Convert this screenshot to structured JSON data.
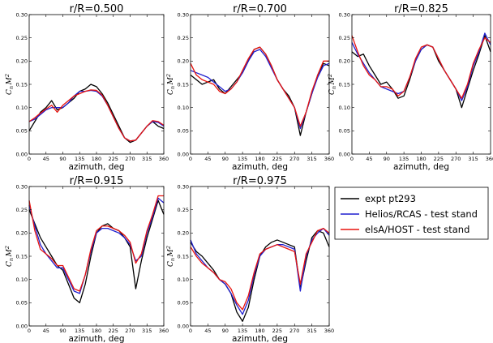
{
  "chart_data": {
    "type": "line",
    "ylabel": "C_n M^2",
    "ylabel_main": "C",
    "ylabel_sub": "n",
    "ylabel_m": "M",
    "ylabel_sup": "2",
    "xlabel": "azimuth, deg",
    "xlim": [
      0,
      360
    ],
    "ylim": [
      0,
      0.3
    ],
    "xticks": [
      "0",
      "45",
      "90",
      "135",
      "180",
      "225",
      "270",
      "315",
      "360"
    ],
    "yticks": [
      "0.00",
      "0.05",
      "0.10",
      "0.15",
      "0.20",
      "0.25",
      "0.30"
    ],
    "legend": [
      {
        "name": "expt pt293",
        "color": "#000000"
      },
      {
        "name": "Helios/RCAS - test stand",
        "color": "#1f1fcf"
      },
      {
        "name": "elsA/HOST - test stand",
        "color": "#e8140f"
      }
    ],
    "panels": [
      {
        "title": "r/R=0.500",
        "x": [
          0,
          15,
          30,
          45,
          60,
          75,
          90,
          105,
          120,
          135,
          150,
          165,
          180,
          195,
          210,
          225,
          240,
          255,
          270,
          285,
          300,
          315,
          330,
          345,
          360
        ],
        "series": [
          [
            0.05,
            0.07,
            0.09,
            0.1,
            0.115,
            0.095,
            0.1,
            0.11,
            0.12,
            0.135,
            0.14,
            0.15,
            0.145,
            0.13,
            0.11,
            0.085,
            0.06,
            0.035,
            0.025,
            0.03,
            0.045,
            0.06,
            0.07,
            0.06,
            0.055
          ],
          [
            0.07,
            0.075,
            0.085,
            0.095,
            0.1,
            0.1,
            0.1,
            0.11,
            0.125,
            0.135,
            0.135,
            0.137,
            0.135,
            0.125,
            0.105,
            0.08,
            0.055,
            0.035,
            0.028,
            0.03,
            0.045,
            0.06,
            0.07,
            0.068,
            0.06
          ],
          [
            0.07,
            0.078,
            0.088,
            0.097,
            0.105,
            0.09,
            0.105,
            0.115,
            0.125,
            0.13,
            0.135,
            0.138,
            0.137,
            0.127,
            0.105,
            0.08,
            0.055,
            0.035,
            0.028,
            0.03,
            0.045,
            0.06,
            0.072,
            0.07,
            0.062
          ]
        ]
      },
      {
        "title": "r/R=0.700",
        "x": [
          0,
          15,
          30,
          45,
          60,
          75,
          90,
          105,
          120,
          135,
          150,
          165,
          180,
          195,
          210,
          225,
          240,
          255,
          270,
          285,
          300,
          315,
          330,
          345,
          360
        ],
        "series": [
          [
            0.17,
            0.16,
            0.15,
            0.155,
            0.16,
            0.14,
            0.13,
            0.145,
            0.16,
            0.175,
            0.2,
            0.225,
            0.23,
            0.215,
            0.19,
            0.16,
            0.14,
            0.125,
            0.1,
            0.04,
            0.09,
            0.13,
            0.17,
            0.195,
            0.19
          ],
          [
            0.18,
            0.175,
            0.17,
            0.165,
            0.155,
            0.145,
            0.135,
            0.14,
            0.155,
            0.175,
            0.2,
            0.22,
            0.225,
            0.21,
            0.185,
            0.16,
            0.14,
            0.12,
            0.1,
            0.055,
            0.09,
            0.13,
            0.165,
            0.19,
            0.195
          ],
          [
            0.195,
            0.17,
            0.16,
            0.155,
            0.15,
            0.135,
            0.13,
            0.14,
            0.155,
            0.18,
            0.205,
            0.225,
            0.23,
            0.215,
            0.19,
            0.16,
            0.14,
            0.12,
            0.1,
            0.06,
            0.09,
            0.135,
            0.17,
            0.2,
            0.2
          ]
        ]
      },
      {
        "title": "r/R=0.825",
        "x": [
          0,
          15,
          30,
          45,
          60,
          75,
          90,
          105,
          120,
          135,
          150,
          165,
          180,
          195,
          210,
          225,
          240,
          255,
          270,
          285,
          300,
          315,
          330,
          345,
          360
        ],
        "series": [
          [
            0.22,
            0.21,
            0.215,
            0.19,
            0.17,
            0.15,
            0.155,
            0.14,
            0.12,
            0.125,
            0.16,
            0.2,
            0.225,
            0.235,
            0.23,
            0.2,
            0.18,
            0.16,
            0.14,
            0.1,
            0.14,
            0.18,
            0.215,
            0.255,
            0.22
          ],
          [
            0.24,
            0.215,
            0.195,
            0.175,
            0.16,
            0.145,
            0.14,
            0.135,
            0.13,
            0.135,
            0.165,
            0.2,
            0.225,
            0.235,
            0.23,
            0.205,
            0.18,
            0.16,
            0.14,
            0.115,
            0.145,
            0.19,
            0.22,
            0.26,
            0.235
          ],
          [
            0.255,
            0.22,
            0.19,
            0.17,
            0.16,
            0.145,
            0.145,
            0.14,
            0.125,
            0.135,
            0.165,
            0.205,
            0.23,
            0.235,
            0.23,
            0.205,
            0.18,
            0.16,
            0.14,
            0.12,
            0.15,
            0.195,
            0.225,
            0.25,
            0.24
          ]
        ]
      },
      {
        "title": "r/R=0.915",
        "x": [
          0,
          15,
          30,
          45,
          60,
          75,
          90,
          105,
          120,
          135,
          150,
          165,
          180,
          195,
          210,
          225,
          240,
          255,
          270,
          285,
          300,
          315,
          330,
          345,
          360
        ],
        "series": [
          [
            0.25,
            0.22,
            0.19,
            0.17,
            0.15,
            0.13,
            0.12,
            0.09,
            0.06,
            0.05,
            0.09,
            0.15,
            0.2,
            0.215,
            0.22,
            0.21,
            0.205,
            0.19,
            0.17,
            0.08,
            0.14,
            0.19,
            0.23,
            0.27,
            0.24
          ],
          [
            0.26,
            0.215,
            0.175,
            0.155,
            0.14,
            0.125,
            0.125,
            0.1,
            0.075,
            0.07,
            0.11,
            0.16,
            0.2,
            0.21,
            0.21,
            0.205,
            0.2,
            0.19,
            0.175,
            0.14,
            0.15,
            0.2,
            0.235,
            0.275,
            0.265
          ],
          [
            0.27,
            0.205,
            0.165,
            0.155,
            0.145,
            0.13,
            0.13,
            0.105,
            0.08,
            0.075,
            0.11,
            0.165,
            0.205,
            0.215,
            0.215,
            0.21,
            0.205,
            0.195,
            0.18,
            0.135,
            0.155,
            0.205,
            0.24,
            0.28,
            0.28
          ]
        ]
      },
      {
        "title": "r/R=0.975",
        "x": [
          0,
          15,
          30,
          45,
          60,
          75,
          90,
          105,
          120,
          135,
          150,
          165,
          180,
          195,
          210,
          225,
          240,
          255,
          270,
          285,
          300,
          315,
          330,
          345,
          360
        ],
        "series": [
          [
            0.18,
            0.16,
            0.15,
            0.135,
            0.12,
            0.1,
            0.09,
            0.07,
            0.03,
            0.01,
            0.04,
            0.1,
            0.15,
            0.17,
            0.18,
            0.185,
            0.18,
            0.175,
            0.17,
            0.08,
            0.14,
            0.19,
            0.205,
            0.2,
            0.17
          ],
          [
            0.185,
            0.155,
            0.14,
            0.125,
            0.115,
            0.1,
            0.09,
            0.07,
            0.045,
            0.025,
            0.055,
            0.11,
            0.15,
            0.165,
            0.17,
            0.175,
            0.175,
            0.17,
            0.165,
            0.075,
            0.15,
            0.185,
            0.2,
            0.21,
            0.195
          ],
          [
            0.17,
            0.15,
            0.135,
            0.125,
            0.115,
            0.1,
            0.095,
            0.08,
            0.05,
            0.035,
            0.065,
            0.115,
            0.155,
            0.165,
            0.17,
            0.175,
            0.17,
            0.165,
            0.16,
            0.09,
            0.155,
            0.18,
            0.205,
            0.21,
            0.2
          ]
        ]
      }
    ]
  }
}
